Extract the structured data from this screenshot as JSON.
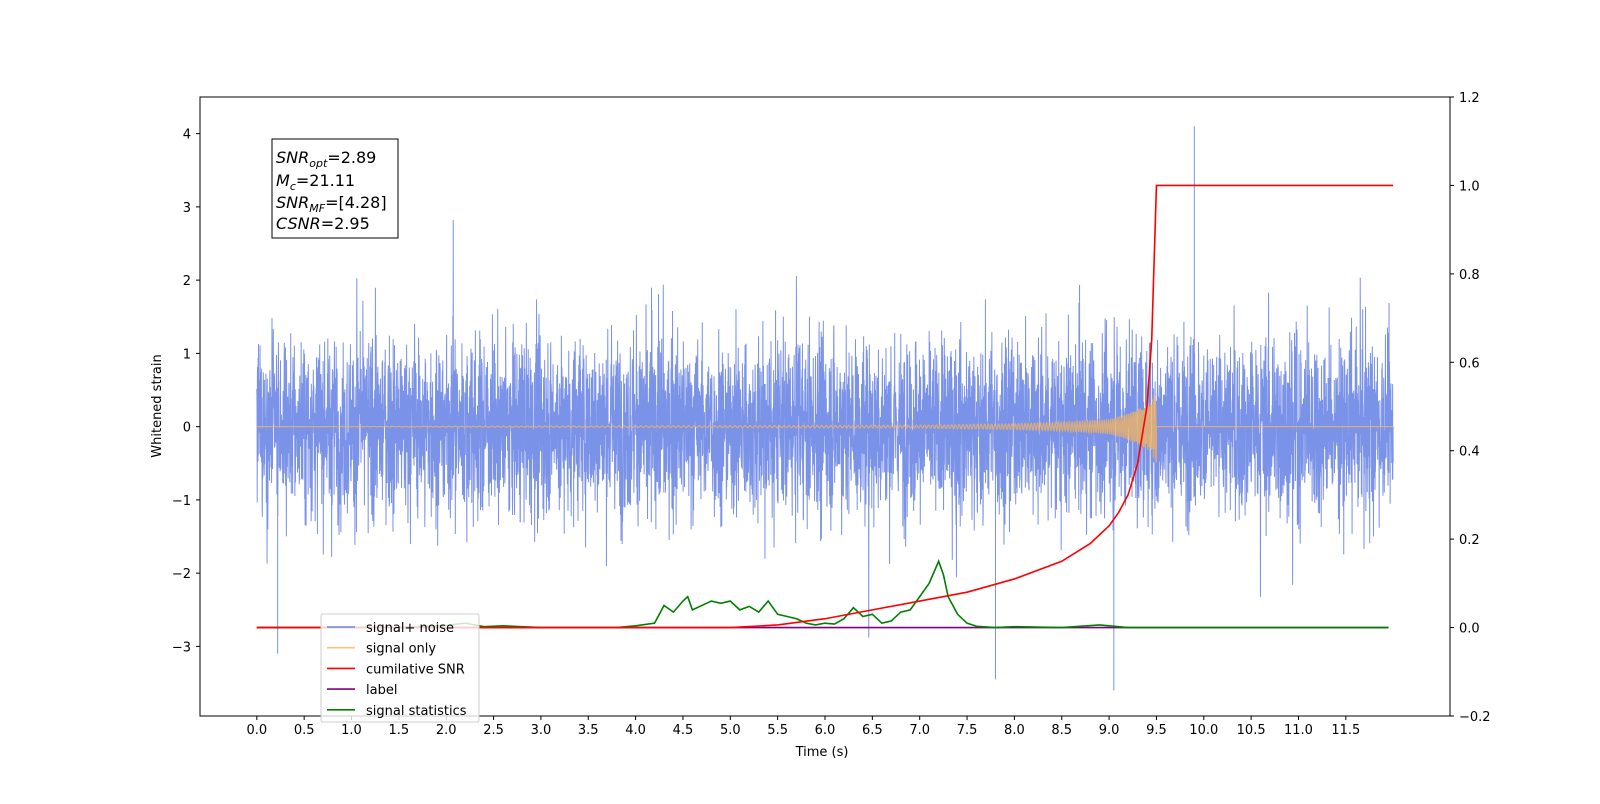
{
  "chart_data": {
    "type": "line",
    "xlabel": "Time (s)",
    "ylabel": "Whitened strain",
    "xlim": [
      -0.6,
      12.6
    ],
    "ylim": [
      -3.95,
      4.5
    ],
    "y2lim": [
      -0.2,
      1.2
    ],
    "x_ticks": [
      "0.0",
      "0.5",
      "1.0",
      "1.5",
      "2.0",
      "2.5",
      "3.0",
      "3.5",
      "4.0",
      "4.5",
      "5.0",
      "5.5",
      "6.0",
      "6.5",
      "7.0",
      "7.5",
      "8.0",
      "8.5",
      "9.0",
      "9.5",
      "10.0",
      "10.5",
      "11.0",
      "11.5"
    ],
    "y_ticks": [
      "−3",
      "−2",
      "−1",
      "0",
      "1",
      "2",
      "3",
      "4"
    ],
    "y2_ticks": [
      "−0.2",
      "0.0",
      "0.2",
      "0.4",
      "0.6",
      "0.8",
      "1.0",
      "1.2"
    ],
    "legend_position": "lower-left",
    "colors": {
      "signal_noise": "#6b86e4",
      "signal_only": "#f7b45c",
      "cumulative_snr": "#ff0000",
      "label": "#800080",
      "signal_statistics": "#008000"
    },
    "annotation": {
      "line1_sym": "SNR",
      "line1_sub": "opt",
      "line1_val": "=2.89",
      "line2_sym": "M",
      "line2_sub": "c",
      "line2_val": "=21.11",
      "line3_sym": "SNR",
      "line3_sub": "MF",
      "line3_val": "=[4.28]",
      "line4_sym": "CSNR",
      "line4_val": "=2.95"
    },
    "series": [
      {
        "name": "signal+ noise",
        "axis": "left",
        "x_range": [
          0.0,
          12.0
        ],
        "amplitude_typical": 1.2,
        "extremes": [
          [
            0.22,
            -3.1
          ],
          [
            7.8,
            -3.45
          ],
          [
            9.05,
            -3.6
          ],
          [
            9.9,
            4.1
          ]
        ]
      },
      {
        "name": "signal only",
        "axis": "left",
        "x": [
          0.0,
          7.0,
          8.0,
          8.5,
          9.0,
          9.2,
          9.4,
          9.5,
          12.0
        ],
        "envelope": [
          0.0,
          0.02,
          0.04,
          0.06,
          0.1,
          0.18,
          0.3,
          0.5,
          0.0
        ]
      },
      {
        "name": "cumilative SNR",
        "axis": "right",
        "x": [
          0.0,
          5.0,
          5.5,
          6.0,
          6.5,
          7.0,
          7.5,
          8.0,
          8.5,
          8.8,
          9.0,
          9.1,
          9.2,
          9.3,
          9.4,
          9.45,
          9.5,
          12.0
        ],
        "y": [
          0.0,
          0.0,
          0.006,
          0.02,
          0.04,
          0.06,
          0.08,
          0.11,
          0.15,
          0.19,
          0.23,
          0.26,
          0.3,
          0.37,
          0.5,
          0.65,
          1.0,
          1.0
        ]
      },
      {
        "name": "label",
        "axis": "right",
        "x": [
          0.0,
          11.95
        ],
        "y": [
          0.0,
          0.0
        ]
      },
      {
        "name": "signal statistics",
        "axis": "right",
        "x": [
          0.0,
          1.5,
          2.0,
          2.2,
          2.4,
          2.6,
          3.0,
          3.8,
          4.0,
          4.2,
          4.3,
          4.4,
          4.5,
          4.55,
          4.6,
          4.7,
          4.8,
          4.9,
          5.0,
          5.1,
          5.2,
          5.3,
          5.4,
          5.5,
          5.6,
          5.7,
          5.8,
          5.9,
          6.0,
          6.1,
          6.2,
          6.3,
          6.4,
          6.5,
          6.6,
          6.7,
          6.8,
          6.9,
          7.0,
          7.1,
          7.2,
          7.25,
          7.3,
          7.4,
          7.5,
          7.6,
          7.8,
          8.0,
          8.5,
          8.9,
          9.0,
          9.2,
          10.0,
          11.95
        ],
        "y": [
          0.0,
          0.0,
          0.005,
          0.01,
          0.002,
          0.004,
          0.0,
          0.0,
          0.004,
          0.01,
          0.05,
          0.035,
          0.06,
          0.07,
          0.04,
          0.05,
          0.06,
          0.055,
          0.06,
          0.04,
          0.048,
          0.035,
          0.06,
          0.03,
          0.025,
          0.02,
          0.01,
          0.006,
          0.01,
          0.008,
          0.02,
          0.045,
          0.025,
          0.03,
          0.01,
          0.015,
          0.035,
          0.04,
          0.07,
          0.1,
          0.15,
          0.12,
          0.07,
          0.03,
          0.01,
          0.003,
          0.0,
          0.002,
          0.0,
          0.006,
          0.004,
          0.0,
          0.0,
          0.0
        ]
      }
    ]
  }
}
